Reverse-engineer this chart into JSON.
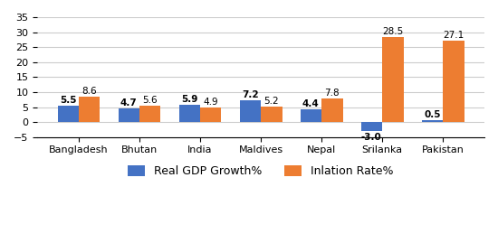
{
  "categories": [
    "Bangladesh",
    "Bhutan",
    "India",
    "Maldives",
    "Nepal",
    "Srilanka",
    "Pakistan"
  ],
  "gdp_growth": [
    5.5,
    4.7,
    5.9,
    7.2,
    4.4,
    -3.0,
    0.5
  ],
  "inflation_rate": [
    8.6,
    5.6,
    4.9,
    5.2,
    7.8,
    28.5,
    27.1
  ],
  "gdp_color": "#4472C4",
  "inflation_color": "#ED7D31",
  "ylim": [
    -5,
    35
  ],
  "yticks": [
    -5,
    0,
    5,
    10,
    15,
    20,
    25,
    30,
    35
  ],
  "legend_labels": [
    "Real GDP Growth%",
    "Inlation Rate%"
  ],
  "bar_width": 0.35,
  "label_fontsize": 7.5,
  "tick_fontsize": 8,
  "legend_fontsize": 9,
  "background_color": "#FFFFFF",
  "grid_color": "#CCCCCC"
}
